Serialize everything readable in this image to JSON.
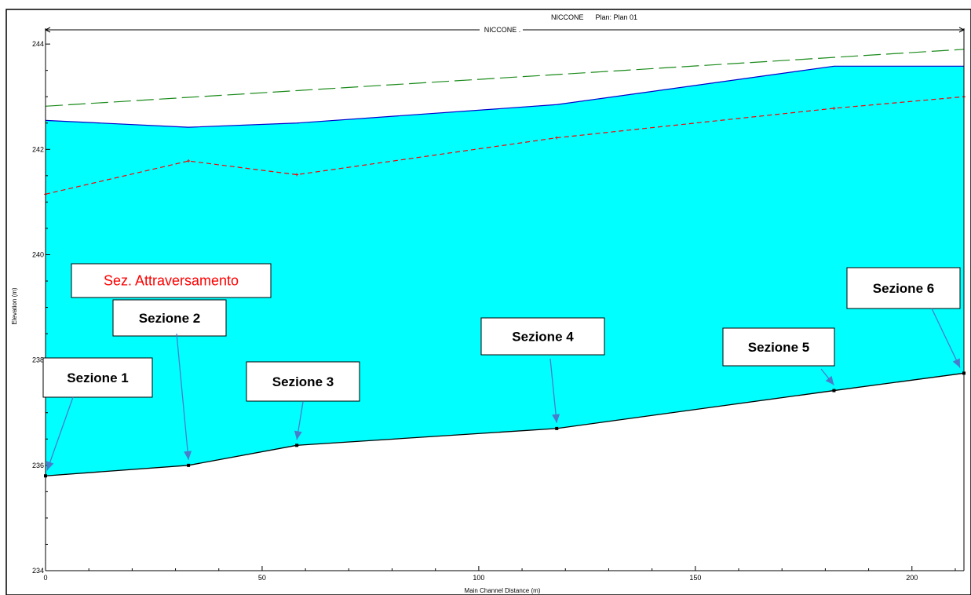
{
  "chart_data": {
    "type": "line",
    "title": "NICCONE      Plan: Plan 01",
    "reach_label": "NICCONE .",
    "xlabel": "Main Channel Distance (m)",
    "ylabel": "Elevation (m)",
    "xlim": [
      0,
      212
    ],
    "ylim": [
      234,
      244.3
    ],
    "x_ticks": [
      0,
      50,
      100,
      150,
      200
    ],
    "y_ticks": [
      234,
      236,
      238,
      240,
      242,
      244
    ],
    "series": [
      {
        "key": "energy",
        "color": "#1a8a1a",
        "style": "long-dash",
        "x": [
          0,
          212
        ],
        "y": [
          242.82,
          243.9
        ]
      },
      {
        "key": "water_surface",
        "color": "#0000cc",
        "fill": "#00ffff",
        "style": "solid",
        "x": [
          0,
          33,
          58,
          118,
          182,
          212
        ],
        "y": [
          242.55,
          242.42,
          242.5,
          242.85,
          243.58,
          243.58
        ]
      },
      {
        "key": "critical",
        "color": "#ff0000",
        "style": "dashed",
        "x": [
          0,
          33,
          58,
          118,
          182,
          212
        ],
        "y": [
          241.15,
          241.78,
          241.52,
          242.22,
          242.78,
          243.0
        ]
      },
      {
        "key": "ground",
        "color": "#000000",
        "style": "solid",
        "x": [
          0,
          33,
          58,
          118,
          182,
          212
        ],
        "y": [
          235.8,
          236.0,
          236.38,
          236.7,
          237.42,
          237.75
        ]
      }
    ],
    "annotations": [
      {
        "label": "Sez. Attraversamento",
        "color": "#ff0000"
      },
      {
        "label": "Sezione 1",
        "target": [
          0,
          235.8
        ]
      },
      {
        "label": "Sezione 2",
        "target": [
          33,
          236.0
        ]
      },
      {
        "label": "Sezione 3",
        "target": [
          58,
          236.38
        ]
      },
      {
        "label": "Sezione 4",
        "target": [
          118,
          236.7
        ]
      },
      {
        "label": "Sezione 5",
        "target": [
          182,
          237.42
        ]
      },
      {
        "label": "Sezione 6",
        "target": [
          212,
          237.75
        ]
      }
    ],
    "legend": "none",
    "grid": false
  }
}
